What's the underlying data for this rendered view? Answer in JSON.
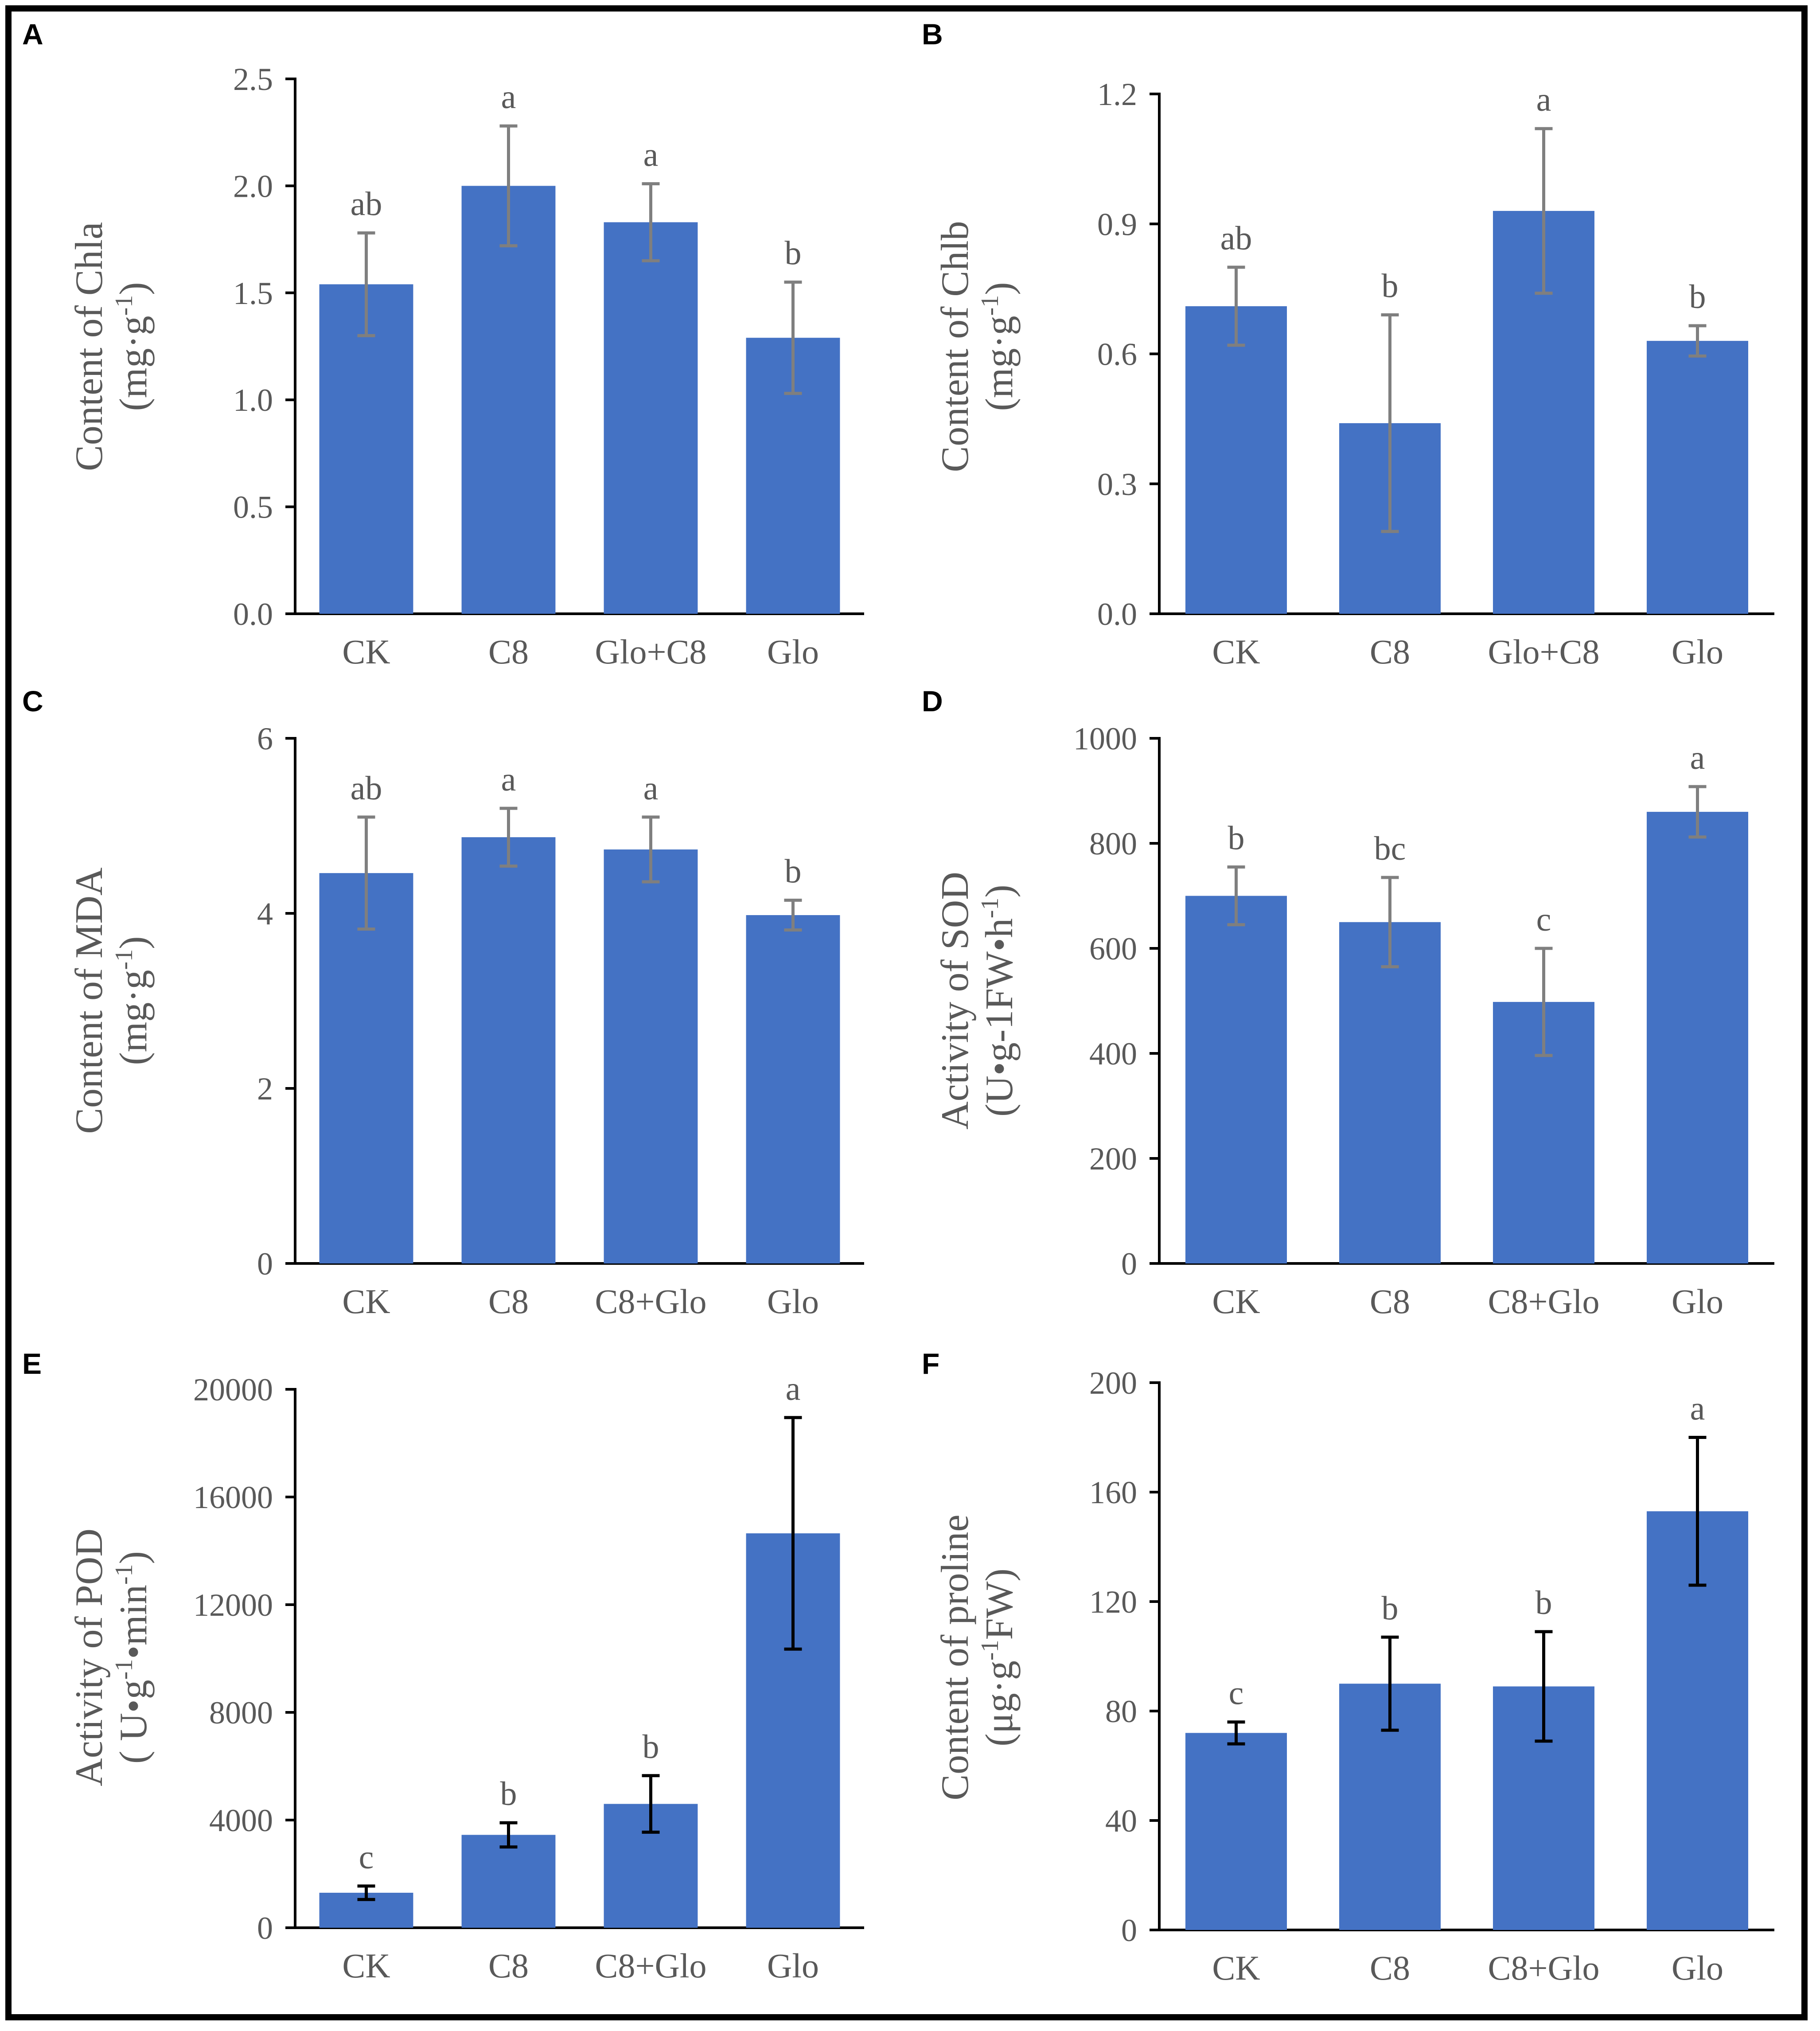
{
  "figure": {
    "colors": {
      "bar": "#4472C4",
      "axis": "#000000",
      "text": "#595959",
      "error_gray": "#7F7F7F",
      "error_black": "#000000"
    }
  },
  "chart_data": [
    {
      "panel": "A",
      "type": "bar",
      "ylabel_line1": "Content of Chla",
      "ylabel_line2": "(mg·g",
      "ylabel_sup": "-1",
      "ylabel_end": ")",
      "categories": [
        "CK",
        "C8",
        "Glo+C8",
        "Glo"
      ],
      "values": [
        1.54,
        2.0,
        1.83,
        1.29
      ],
      "errors": [
        0.24,
        0.28,
        0.18,
        0.26
      ],
      "letters": [
        "ab",
        "a",
        "a",
        "b"
      ],
      "ylim": [
        0,
        2.5
      ],
      "ticks": [
        0.0,
        0.5,
        1.0,
        1.5,
        2.0,
        2.5
      ],
      "tick_labels": [
        "0.0",
        "0.5",
        "1.0",
        "1.5",
        "2.0",
        "2.5"
      ],
      "error_color": "gray"
    },
    {
      "panel": "B",
      "type": "bar",
      "ylabel_line1": "Content of Chlb",
      "ylabel_line2": "(mg·g",
      "ylabel_sup": "-1",
      "ylabel_end": ")",
      "categories": [
        "CK",
        "C8",
        "Glo+C8",
        "Glo"
      ],
      "values": [
        0.71,
        0.44,
        0.93,
        0.63
      ],
      "errors": [
        0.09,
        0.25,
        0.19,
        0.035
      ],
      "letters": [
        "ab",
        "b",
        "a",
        "b"
      ],
      "ylim": [
        0,
        1.2
      ],
      "ticks": [
        0.0,
        0.3,
        0.6,
        0.9,
        1.2
      ],
      "tick_labels": [
        "0.0",
        "0.3",
        "0.6",
        "0.9",
        "1.2"
      ],
      "error_color": "gray"
    },
    {
      "panel": "C",
      "type": "bar",
      "ylabel_line1": "Content of MDA",
      "ylabel_line2": "(mg·g",
      "ylabel_sup": "-1",
      "ylabel_end": ")",
      "categories": [
        "CK",
        "C8",
        "C8+Glo",
        "Glo"
      ],
      "values": [
        4.46,
        4.87,
        4.73,
        3.98
      ],
      "errors": [
        0.64,
        0.33,
        0.37,
        0.17
      ],
      "letters": [
        "ab",
        "a",
        "a",
        "b"
      ],
      "ylim": [
        0,
        6
      ],
      "ticks": [
        0,
        2,
        4,
        6
      ],
      "tick_labels": [
        "0",
        "2",
        "4",
        "6"
      ],
      "error_color": "gray"
    },
    {
      "panel": "D",
      "type": "bar",
      "ylabel_line1": "Activity of SOD",
      "ylabel_line2": "(U•g-1FW•h",
      "ylabel_sup": "-1",
      "ylabel_end": ")",
      "categories": [
        "CK",
        "C8",
        "C8+Glo",
        "Glo"
      ],
      "values": [
        700,
        650,
        498,
        860
      ],
      "errors": [
        55,
        85,
        102,
        48
      ],
      "letters": [
        "b",
        "bc",
        "c",
        "a"
      ],
      "ylim": [
        0,
        1000
      ],
      "ticks": [
        0,
        200,
        400,
        600,
        800,
        1000
      ],
      "tick_labels": [
        "0",
        "200",
        "400",
        "600",
        "800",
        "1000"
      ],
      "error_color": "gray"
    },
    {
      "panel": "E",
      "type": "bar",
      "ylabel_line1": "Activity of POD",
      "ylabel_line2": "( U•g",
      "ylabel_sup": "-1",
      "ylabel_end": "•min",
      "ylabel_sup2": "-1",
      "ylabel_end2": ")",
      "categories": [
        "CK",
        "C8",
        "C8+Glo",
        "Glo"
      ],
      "values": [
        1300,
        3450,
        4600,
        14650
      ],
      "errors": [
        250,
        450,
        1050,
        4300
      ],
      "letters": [
        "c",
        "b",
        "b",
        "a"
      ],
      "ylim": [
        0,
        20000
      ],
      "ticks": [
        0,
        4000,
        8000,
        12000,
        16000,
        20000
      ],
      "tick_labels": [
        "0",
        "4000",
        "8000",
        "12000",
        "16000",
        "20000"
      ],
      "error_color": "black"
    },
    {
      "panel": "F",
      "type": "bar",
      "ylabel_line1": "Content of proline",
      "ylabel_line2": "(μg·g",
      "ylabel_sup": "-1",
      "ylabel_end": "FW)",
      "categories": [
        "CK",
        "C8",
        "C8+Glo",
        "Glo"
      ],
      "values": [
        72,
        90,
        89,
        153
      ],
      "errors": [
        4,
        17,
        20,
        27
      ],
      "letters": [
        "c",
        "b",
        "b",
        "a"
      ],
      "ylim": [
        0,
        200
      ],
      "ticks": [
        0,
        40,
        80,
        120,
        160,
        200
      ],
      "tick_labels": [
        "0",
        "40",
        "80",
        "120",
        "160",
        "200"
      ],
      "error_color": "black"
    }
  ]
}
